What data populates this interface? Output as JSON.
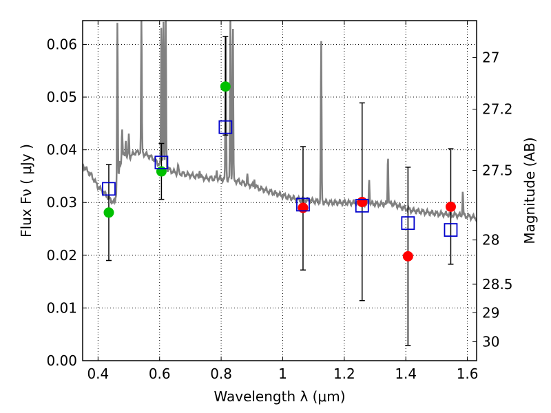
{
  "chart_data": {
    "type": "scatter",
    "xlabel": "Wavelength  λ (μm)",
    "ylabel": "Flux  Fν  ( μJy )",
    "right_ylabel": "Magnitude (AB)",
    "xlim": [
      0.35,
      1.63
    ],
    "ylim": [
      0.0,
      0.0645
    ],
    "grid": true,
    "x_ticks": [
      0.4,
      0.6,
      0.8,
      1.0,
      1.2,
      1.4,
      1.6
    ],
    "x_tick_labels": [
      "0.4",
      "0.6",
      "0.8",
      "1",
      "1.2",
      "1.4",
      "1.6"
    ],
    "y_ticks": [
      0.0,
      0.01,
      0.02,
      0.03,
      0.04,
      0.05,
      0.06
    ],
    "y_tick_labels": [
      "0.00",
      "0.01",
      "0.02",
      "0.03",
      "0.04",
      "0.05",
      "0.06"
    ],
    "right_ticks": [
      {
        "label": "27",
        "flux": 0.0575
      },
      {
        "label": "27.2",
        "flux": 0.0477
      },
      {
        "label": "27.5",
        "flux": 0.0361
      },
      {
        "label": "28",
        "flux": 0.0229
      },
      {
        "label": "28.5",
        "flux": 0.0145
      },
      {
        "label": "29",
        "flux": 0.0091
      },
      {
        "label": "30",
        "flux": 0.0036
      }
    ],
    "series": [
      {
        "marker": "circle",
        "color": "#00c000",
        "points": [
          {
            "x": 0.435,
            "y": 0.0281
          },
          {
            "x": 0.606,
            "y": 0.0359
          },
          {
            "x": 0.814,
            "y": 0.052
          }
        ]
      },
      {
        "marker": "circle",
        "color": "#ff0000",
        "points": [
          {
            "x": 1.066,
            "y": 0.029
          },
          {
            "x": 1.258,
            "y": 0.0301
          },
          {
            "x": 1.407,
            "y": 0.0198
          },
          {
            "x": 1.546,
            "y": 0.0292
          }
        ]
      },
      {
        "marker": "open-square",
        "color": "#0000cc",
        "points": [
          {
            "x": 0.435,
            "y": 0.0326,
            "err_low": 0.019,
            "err_high": 0.0372
          },
          {
            "x": 0.606,
            "y": 0.0376,
            "err_low": 0.0306,
            "err_high": 0.0412
          },
          {
            "x": 0.814,
            "y": 0.0443,
            "err_low": 0.0428,
            "err_high": 0.0615
          },
          {
            "x": 1.066,
            "y": 0.0296,
            "err_low": 0.0172,
            "err_high": 0.0406
          },
          {
            "x": 1.258,
            "y": 0.0294,
            "err_low": 0.0114,
            "err_high": 0.0489
          },
          {
            "x": 1.407,
            "y": 0.0261,
            "err_low": 0.0029,
            "err_high": 0.0367
          },
          {
            "x": 1.546,
            "y": 0.0248,
            "err_low": 0.0183,
            "err_high": 0.0402
          }
        ]
      },
      {
        "marker": "line",
        "color": "#808080",
        "continuum": [
          [
            0.35,
            0.0371
          ],
          [
            0.38,
            0.035
          ],
          [
            0.4,
            0.033
          ],
          [
            0.42,
            0.0318
          ],
          [
            0.44,
            0.0305
          ],
          [
            0.455,
            0.03
          ],
          [
            0.47,
            0.036
          ],
          [
            0.48,
            0.039
          ],
          [
            0.5,
            0.0385
          ],
          [
            0.52,
            0.0395
          ],
          [
            0.54,
            0.0395
          ],
          [
            0.56,
            0.039
          ],
          [
            0.58,
            0.0383
          ],
          [
            0.6,
            0.0372
          ],
          [
            0.62,
            0.0365
          ],
          [
            0.65,
            0.0357
          ],
          [
            0.7,
            0.0352
          ],
          [
            0.75,
            0.0346
          ],
          [
            0.8,
            0.0345
          ],
          [
            0.85,
            0.0341
          ],
          [
            0.9,
            0.0332
          ],
          [
            0.95,
            0.0322
          ],
          [
            1.0,
            0.0313
          ],
          [
            1.05,
            0.0306
          ],
          [
            1.1,
            0.0303
          ],
          [
            1.15,
            0.03
          ],
          [
            1.2,
            0.03
          ],
          [
            1.25,
            0.0299
          ],
          [
            1.28,
            0.0298
          ],
          [
            1.32,
            0.0297
          ],
          [
            1.36,
            0.0298
          ],
          [
            1.39,
            0.029
          ],
          [
            1.42,
            0.0285
          ],
          [
            1.46,
            0.0282
          ],
          [
            1.5,
            0.0279
          ],
          [
            1.55,
            0.0277
          ],
          [
            1.59,
            0.0275
          ],
          [
            1.63,
            0.0271
          ]
        ],
        "lines": [
          {
            "x": 0.463,
            "peak": 0.0645
          },
          {
            "x": 0.471,
            "peak": 0.038
          },
          {
            "x": 0.478,
            "peak": 0.044
          },
          {
            "x": 0.49,
            "peak": 0.042
          },
          {
            "x": 0.5,
            "peak": 0.043
          },
          {
            "x": 0.541,
            "peak": 0.0645
          },
          {
            "x": 0.606,
            "peak": 0.0645
          },
          {
            "x": 0.613,
            "peak": 0.0645
          },
          {
            "x": 0.62,
            "peak": 0.0645
          },
          {
            "x": 0.66,
            "peak": 0.0372
          },
          {
            "x": 0.73,
            "peak": 0.0362
          },
          {
            "x": 0.786,
            "peak": 0.036
          },
          {
            "x": 0.815,
            "peak": 0.0645
          },
          {
            "x": 0.83,
            "peak": 0.0645
          },
          {
            "x": 0.838,
            "peak": 0.0645
          },
          {
            "x": 0.885,
            "peak": 0.035
          },
          {
            "x": 0.908,
            "peak": 0.0345
          },
          {
            "x": 1.125,
            "peak": 0.0605
          },
          {
            "x": 1.281,
            "peak": 0.0345
          },
          {
            "x": 1.342,
            "peak": 0.039
          },
          {
            "x": 1.585,
            "peak": 0.0322
          }
        ]
      }
    ]
  }
}
